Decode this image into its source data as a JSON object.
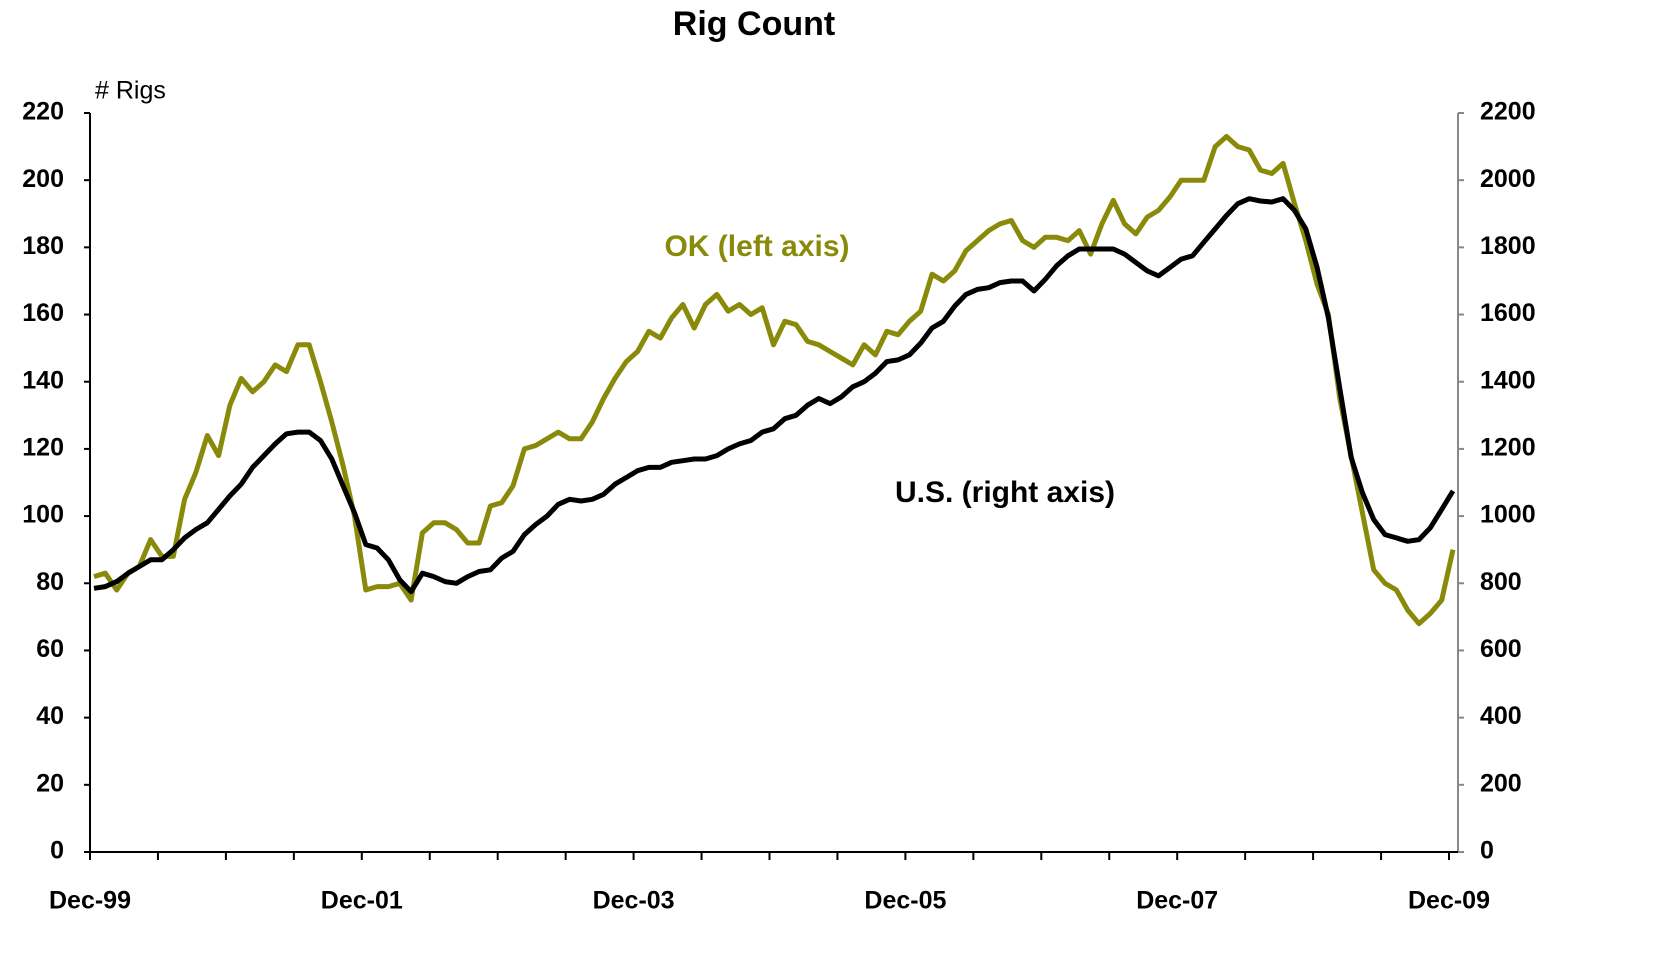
{
  "chart_data": {
    "type": "line",
    "title": "Rig Count",
    "y_label": "# Rigs",
    "annotations": [
      "OK (left axis)",
      "U.S. (right axis)"
    ],
    "categories": [
      "Dec-99",
      null,
      null,
      null,
      null,
      null,
      null,
      null,
      null,
      null,
      null,
      null,
      null,
      null,
      null,
      null,
      null,
      null,
      null,
      null,
      null,
      null,
      null,
      null,
      "Dec-01",
      null,
      null,
      null,
      null,
      null,
      null,
      null,
      null,
      null,
      null,
      null,
      null,
      null,
      null,
      null,
      null,
      null,
      null,
      null,
      null,
      null,
      null,
      null,
      "Dec-03",
      null,
      null,
      null,
      null,
      null,
      null,
      null,
      null,
      null,
      null,
      null,
      null,
      null,
      null,
      null,
      null,
      null,
      null,
      null,
      null,
      null,
      null,
      null,
      "Dec-05",
      null,
      null,
      null,
      null,
      null,
      null,
      null,
      null,
      null,
      null,
      null,
      null,
      null,
      null,
      null,
      null,
      null,
      null,
      null,
      null,
      null,
      null,
      null,
      "Dec-07",
      null,
      null,
      null,
      null,
      null,
      null,
      null,
      null,
      null,
      null,
      null,
      null,
      null,
      null,
      null,
      null,
      null,
      null,
      null,
      null,
      null,
      null,
      null,
      "Dec-09"
    ],
    "series": [
      {
        "name": "OK",
        "color": "#8a8a0a",
        "axis": "y",
        "values": [
          82,
          83,
          78,
          83,
          85,
          93,
          88,
          88,
          105,
          113,
          124,
          118,
          133,
          141,
          137,
          140,
          145,
          143,
          151,
          151,
          140,
          128,
          115,
          100,
          78,
          79,
          79,
          80,
          75,
          95,
          98,
          98,
          96,
          92,
          92,
          103,
          104,
          109,
          120,
          121,
          123,
          125,
          123,
          123,
          128,
          135,
          141,
          146,
          149,
          155,
          153,
          159,
          163,
          156,
          163,
          166,
          161,
          163,
          160,
          162,
          151,
          158,
          157,
          152,
          151,
          149,
          147,
          145,
          151,
          148,
          155,
          154,
          158,
          161,
          172,
          170,
          173,
          179,
          182,
          185,
          187,
          188,
          182,
          180,
          183,
          183,
          182,
          185,
          178,
          187,
          194,
          187,
          184,
          189,
          191,
          195,
          200,
          200,
          200,
          210,
          213,
          210,
          209,
          203,
          202,
          205,
          193,
          182,
          169,
          160,
          135,
          118,
          101,
          84,
          80,
          78,
          72,
          68,
          71,
          75,
          90
        ]
      },
      {
        "name": "U.S.",
        "color": "#000000",
        "axis": "y2",
        "values": [
          785,
          790,
          805,
          830,
          850,
          870,
          870,
          900,
          935,
          960,
          980,
          1020,
          1060,
          1095,
          1145,
          1180,
          1215,
          1245,
          1250,
          1250,
          1225,
          1170,
          1090,
          1010,
          915,
          905,
          870,
          810,
          775,
          830,
          820,
          805,
          800,
          820,
          835,
          840,
          875,
          895,
          945,
          975,
          1000,
          1035,
          1050,
          1045,
          1050,
          1065,
          1095,
          1115,
          1135,
          1145,
          1145,
          1160,
          1165,
          1170,
          1170,
          1180,
          1200,
          1215,
          1225,
          1250,
          1260,
          1290,
          1300,
          1330,
          1350,
          1335,
          1355,
          1385,
          1400,
          1425,
          1460,
          1465,
          1480,
          1515,
          1560,
          1580,
          1625,
          1660,
          1675,
          1680,
          1695,
          1700,
          1700,
          1670,
          1705,
          1745,
          1775,
          1795,
          1795,
          1795,
          1795,
          1780,
          1755,
          1730,
          1715,
          1740,
          1765,
          1775,
          1815,
          1855,
          1895,
          1930,
          1945,
          1938,
          1935,
          1945,
          1910,
          1855,
          1740,
          1590,
          1380,
          1175,
          1070,
          990,
          945,
          935,
          925,
          930,
          965,
          1020,
          1075
        ]
      }
    ],
    "ylim": [
      0,
      220
    ],
    "yticks": [
      0,
      20,
      40,
      60,
      80,
      100,
      120,
      140,
      160,
      180,
      200,
      220
    ],
    "y2lim": [
      0,
      2200
    ],
    "y2ticks": [
      0,
      200,
      400,
      600,
      800,
      1000,
      1200,
      1400,
      1600,
      1800,
      2000,
      2200
    ]
  }
}
